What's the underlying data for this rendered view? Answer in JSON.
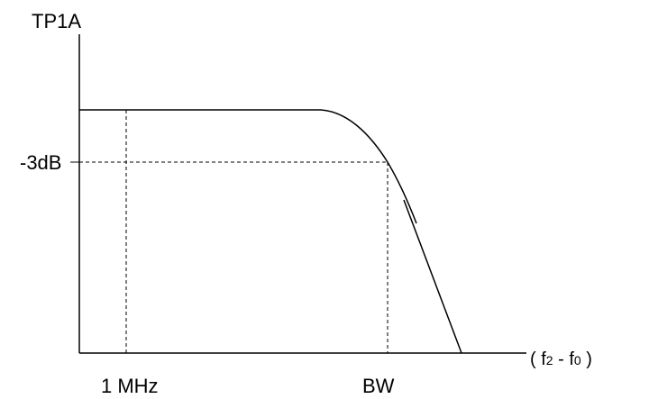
{
  "diagram": {
    "y_axis_label": "TP1A",
    "level_label": "-3dB",
    "x_tick_1_label": "1 MHz",
    "x_tick_2_label": "BW",
    "x_axis_label": {
      "open": "( f",
      "sub1": "2",
      "mid": " - f",
      "sub2": "0",
      "close": " )"
    }
  }
}
